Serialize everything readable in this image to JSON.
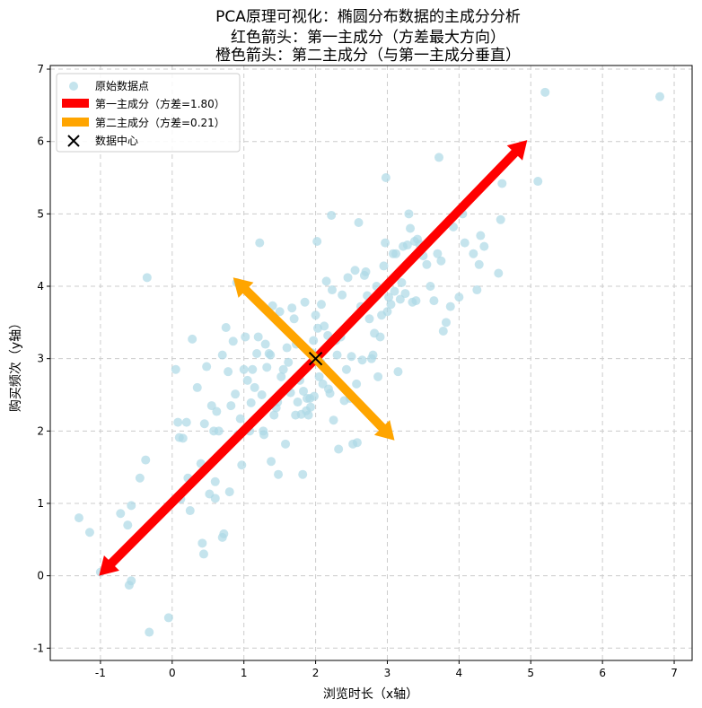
{
  "chart_data": {
    "type": "scatter",
    "title_lines": [
      "PCA原理可视化：椭圆分布数据的主成分分析",
      "红色箭头：第一主成分（方差最大方向）",
      "橙色箭头：第二主成分（与第一主成分垂直）"
    ],
    "xlabel": "浏览时长（x轴）",
    "ylabel": "购买频次（y轴）",
    "xlim": [
      -1.7,
      7.25
    ],
    "ylim": [
      -1.17,
      7.05
    ],
    "xticks": [
      -1,
      0,
      1,
      2,
      3,
      4,
      5,
      6,
      7
    ],
    "yticks": [
      -1,
      0,
      1,
      2,
      3,
      4,
      5,
      6,
      7
    ],
    "grid": true,
    "legend_position": "top-left",
    "legend": [
      {
        "label": "原始数据点",
        "kind": "point",
        "color": "#add8e6"
      },
      {
        "label": "第一主成分（方差=1.80）",
        "kind": "patch",
        "color": "#ff0000"
      },
      {
        "label": "第二主成分（方差=0.21）",
        "kind": "patch",
        "color": "#ffa500"
      },
      {
        "label": "数据中心",
        "kind": "x-marker",
        "color": "#000000"
      }
    ],
    "center": {
      "x": 2.0,
      "y": 3.0
    },
    "arrows": [
      {
        "name": "第一主成分",
        "color": "#ff0000",
        "from": [
          2.0,
          3.0
        ],
        "to": [
          4.95,
          6.02
        ]
      },
      {
        "name": "第一主成分",
        "color": "#ff0000",
        "from": [
          2.0,
          3.0
        ],
        "to": [
          -1.02,
          0.0
        ]
      },
      {
        "name": "第二主成分",
        "color": "#ffa500",
        "from": [
          2.0,
          3.0
        ],
        "to": [
          3.1,
          1.87
        ]
      },
      {
        "name": "第二主成分",
        "color": "#ffa500",
        "from": [
          2.0,
          3.0
        ],
        "to": [
          0.85,
          4.12
        ]
      }
    ],
    "points_color": "#add8e6",
    "points": [
      [
        -1.3,
        0.8
      ],
      [
        -1.15,
        0.6
      ],
      [
        -1.0,
        0.05
      ],
      [
        -0.72,
        0.86
      ],
      [
        -0.62,
        0.7
      ],
      [
        -0.57,
        0.97
      ],
      [
        -0.6,
        -0.13
      ],
      [
        -0.57,
        -0.07
      ],
      [
        -0.45,
        1.35
      ],
      [
        -0.37,
        1.6
      ],
      [
        -0.32,
        -0.78
      ],
      [
        -0.35,
        4.12
      ],
      [
        -0.05,
        -0.58
      ],
      [
        0.05,
        2.85
      ],
      [
        0.08,
        2.12
      ],
      [
        0.1,
        1.91
      ],
      [
        0.12,
        1.06
      ],
      [
        0.15,
        1.9
      ],
      [
        0.2,
        2.12
      ],
      [
        0.22,
        1.35
      ],
      [
        0.25,
        0.9
      ],
      [
        0.28,
        3.27
      ],
      [
        0.35,
        2.6
      ],
      [
        0.4,
        1.55
      ],
      [
        0.42,
        0.45
      ],
      [
        0.44,
        0.3
      ],
      [
        0.45,
        2.1
      ],
      [
        0.48,
        2.89
      ],
      [
        0.52,
        1.13
      ],
      [
        0.55,
        2.35
      ],
      [
        0.58,
        2.0
      ],
      [
        0.6,
        1.07
      ],
      [
        0.6,
        1.3
      ],
      [
        0.62,
        2.27
      ],
      [
        0.65,
        2.0
      ],
      [
        0.7,
        3.05
      ],
      [
        0.7,
        0.53
      ],
      [
        0.72,
        0.58
      ],
      [
        0.75,
        3.43
      ],
      [
        0.78,
        2.82
      ],
      [
        0.8,
        1.16
      ],
      [
        0.82,
        2.35
      ],
      [
        0.85,
        3.24
      ],
      [
        0.88,
        2.51
      ],
      [
        0.9,
        4.05
      ],
      [
        0.92,
        1.95
      ],
      [
        0.95,
        2.17
      ],
      [
        0.97,
        1.53
      ],
      [
        1.0,
        2.85
      ],
      [
        1.02,
        3.3
      ],
      [
        1.05,
        2.7
      ],
      [
        1.08,
        2.0
      ],
      [
        1.1,
        2.39
      ],
      [
        1.12,
        2.85
      ],
      [
        1.15,
        2.6
      ],
      [
        1.18,
        3.07
      ],
      [
        1.2,
        3.3
      ],
      [
        1.22,
        4.6
      ],
      [
        1.25,
        2.5
      ],
      [
        1.27,
        2.0
      ],
      [
        1.28,
        1.95
      ],
      [
        1.3,
        3.2
      ],
      [
        1.32,
        2.88
      ],
      [
        1.35,
        3.07
      ],
      [
        1.37,
        3.05
      ],
      [
        1.38,
        1.58
      ],
      [
        1.4,
        3.73
      ],
      [
        1.42,
        2.22
      ],
      [
        1.45,
        2.32
      ],
      [
        1.47,
        2.4
      ],
      [
        1.48,
        1.4
      ],
      [
        1.5,
        3.65
      ],
      [
        1.52,
        2.75
      ],
      [
        1.55,
        2.85
      ],
      [
        1.58,
        1.82
      ],
      [
        1.6,
        3.15
      ],
      [
        1.62,
        2.95
      ],
      [
        1.65,
        2.53
      ],
      [
        1.67,
        3.7
      ],
      [
        1.7,
        3.55
      ],
      [
        1.72,
        2.22
      ],
      [
        1.73,
        3.2
      ],
      [
        1.75,
        2.4
      ],
      [
        1.78,
        2.7
      ],
      [
        1.8,
        2.23
      ],
      [
        1.82,
        1.4
      ],
      [
        1.83,
        2.55
      ],
      [
        1.85,
        3.78
      ],
      [
        1.87,
        2.28
      ],
      [
        1.88,
        2.45
      ],
      [
        1.9,
        2.22
      ],
      [
        1.92,
        2.45
      ],
      [
        1.93,
        2.33
      ],
      [
        1.95,
        3.08
      ],
      [
        1.97,
        3.25
      ],
      [
        1.98,
        2.48
      ],
      [
        2.0,
        3.6
      ],
      [
        2.02,
        4.62
      ],
      [
        2.03,
        3.42
      ],
      [
        2.05,
        2.75
      ],
      [
        2.07,
        2.95
      ],
      [
        2.08,
        3.75
      ],
      [
        2.1,
        2.65
      ],
      [
        2.12,
        3.45
      ],
      [
        2.15,
        4.07
      ],
      [
        2.17,
        3.32
      ],
      [
        2.18,
        2.58
      ],
      [
        2.2,
        2.52
      ],
      [
        2.22,
        4.98
      ],
      [
        2.23,
        3.95
      ],
      [
        2.25,
        2.15
      ],
      [
        2.28,
        3.25
      ],
      [
        2.3,
        3.05
      ],
      [
        2.32,
        1.75
      ],
      [
        2.35,
        3.3
      ],
      [
        2.37,
        3.88
      ],
      [
        2.4,
        2.42
      ],
      [
        2.43,
        2.85
      ],
      [
        2.45,
        4.12
      ],
      [
        2.48,
        2.45
      ],
      [
        2.5,
        3.03
      ],
      [
        2.52,
        1.82
      ],
      [
        2.55,
        4.22
      ],
      [
        2.57,
        2.65
      ],
      [
        2.58,
        1.84
      ],
      [
        2.6,
        4.88
      ],
      [
        2.63,
        3.72
      ],
      [
        2.65,
        2.98
      ],
      [
        2.68,
        4.15
      ],
      [
        2.7,
        4.2
      ],
      [
        2.72,
        3.87
      ],
      [
        2.75,
        3.55
      ],
      [
        2.78,
        3.0
      ],
      [
        2.8,
        3.05
      ],
      [
        2.82,
        3.35
      ],
      [
        2.85,
        4.0
      ],
      [
        2.87,
        2.75
      ],
      [
        2.9,
        3.3
      ],
      [
        2.92,
        3.6
      ],
      [
        2.95,
        4.28
      ],
      [
        2.97,
        4.6
      ],
      [
        2.98,
        5.5
      ],
      [
        3.0,
        3.65
      ],
      [
        3.02,
        3.85
      ],
      [
        3.05,
        3.75
      ],
      [
        3.08,
        4.45
      ],
      [
        3.1,
        3.93
      ],
      [
        3.12,
        4.45
      ],
      [
        3.15,
        2.82
      ],
      [
        3.18,
        3.82
      ],
      [
        3.2,
        4.05
      ],
      [
        3.22,
        4.55
      ],
      [
        3.25,
        3.9
      ],
      [
        3.28,
        4.57
      ],
      [
        3.3,
        5.0
      ],
      [
        3.32,
        4.8
      ],
      [
        3.35,
        3.78
      ],
      [
        3.38,
        4.62
      ],
      [
        3.4,
        3.8
      ],
      [
        3.42,
        4.65
      ],
      [
        3.45,
        4.58
      ],
      [
        3.5,
        4.42
      ],
      [
        3.55,
        4.3
      ],
      [
        3.6,
        4.0
      ],
      [
        3.65,
        3.8
      ],
      [
        3.7,
        4.45
      ],
      [
        3.72,
        5.78
      ],
      [
        3.75,
        4.35
      ],
      [
        3.78,
        3.38
      ],
      [
        3.82,
        3.5
      ],
      [
        3.88,
        3.72
      ],
      [
        3.92,
        4.82
      ],
      [
        4.0,
        3.85
      ],
      [
        4.05,
        5.0
      ],
      [
        4.08,
        4.6
      ],
      [
        4.2,
        4.45
      ],
      [
        4.25,
        3.95
      ],
      [
        4.28,
        4.3
      ],
      [
        4.3,
        4.7
      ],
      [
        4.35,
        4.55
      ],
      [
        4.55,
        4.18
      ],
      [
        4.58,
        4.92
      ],
      [
        4.6,
        5.42
      ],
      [
        5.1,
        5.45
      ],
      [
        5.2,
        6.68
      ],
      [
        6.8,
        6.62
      ]
    ]
  }
}
